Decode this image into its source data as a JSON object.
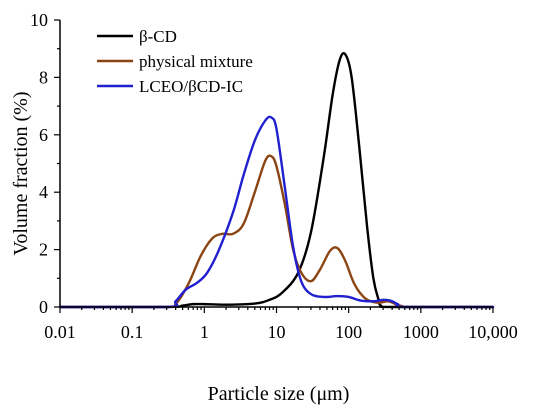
{
  "chart_data": {
    "type": "line",
    "xscale": "log",
    "xlim": [
      0.01,
      10000
    ],
    "ylim": [
      0,
      10
    ],
    "xlabel": "Particle size (μm)",
    "ylabel": "Volume fraction (%)",
    "x_ticks": [
      0.01,
      0.1,
      1,
      10,
      100,
      1000,
      10000
    ],
    "x_tick_labels": [
      "0.01",
      "0.1",
      "1",
      "10",
      "100",
      "1000",
      "10,000"
    ],
    "y_ticks": [
      0,
      2,
      4,
      6,
      8,
      10
    ],
    "y_tick_labels": [
      "0",
      "2",
      "4",
      "6",
      "8",
      "10"
    ],
    "legend_position": "top-left",
    "grid": false,
    "series": [
      {
        "name": "β-CD",
        "color": "#000000",
        "x": [
          0.01,
          0.3,
          0.5,
          0.7,
          1,
          2,
          5,
          8,
          12,
          20,
          30,
          45,
          60,
          75,
          90,
          110,
          140,
          180,
          220,
          260,
          280,
          400,
          10000
        ],
        "y": [
          0,
          0,
          0.05,
          0.1,
          0.1,
          0.08,
          0.12,
          0.25,
          0.5,
          1.2,
          2.6,
          5.2,
          7.4,
          8.6,
          8.8,
          8.0,
          5.6,
          2.8,
          1.0,
          0.25,
          0.05,
          0,
          0
        ]
      },
      {
        "name": "physical mixture",
        "color": "#8B4513",
        "x": [
          0.01,
          0.3,
          0.4,
          0.6,
          0.9,
          1.3,
          1.8,
          2.5,
          3.5,
          5,
          7,
          8.5,
          10,
          13,
          17,
          22,
          30,
          40,
          55,
          70,
          90,
          120,
          170,
          250,
          350,
          450,
          550,
          700,
          10000
        ],
        "y": [
          0,
          0,
          0.1,
          0.8,
          1.8,
          2.4,
          2.55,
          2.55,
          2.9,
          4.0,
          5.1,
          5.25,
          4.9,
          3.6,
          2.0,
          1.2,
          0.9,
          1.3,
          1.95,
          2.05,
          1.6,
          0.8,
          0.3,
          0.15,
          0.2,
          0.1,
          0.03,
          0,
          0
        ]
      },
      {
        "name": "LCEO/βCD-IC",
        "color": "#2020D0",
        "x": [
          0.01,
          0.3,
          0.4,
          0.55,
          0.8,
          1.1,
          1.6,
          2.5,
          3.5,
          5,
          7,
          8.5,
          10,
          13,
          17,
          22,
          30,
          45,
          70,
          100,
          150,
          230,
          300,
          380,
          480,
          600,
          10000
        ],
        "y": [
          0,
          0,
          0.2,
          0.6,
          0.85,
          1.2,
          2.0,
          3.3,
          4.6,
          5.8,
          6.5,
          6.6,
          6.2,
          4.2,
          2.1,
          0.9,
          0.45,
          0.35,
          0.38,
          0.35,
          0.22,
          0.2,
          0.25,
          0.22,
          0.1,
          0,
          0
        ]
      }
    ]
  }
}
